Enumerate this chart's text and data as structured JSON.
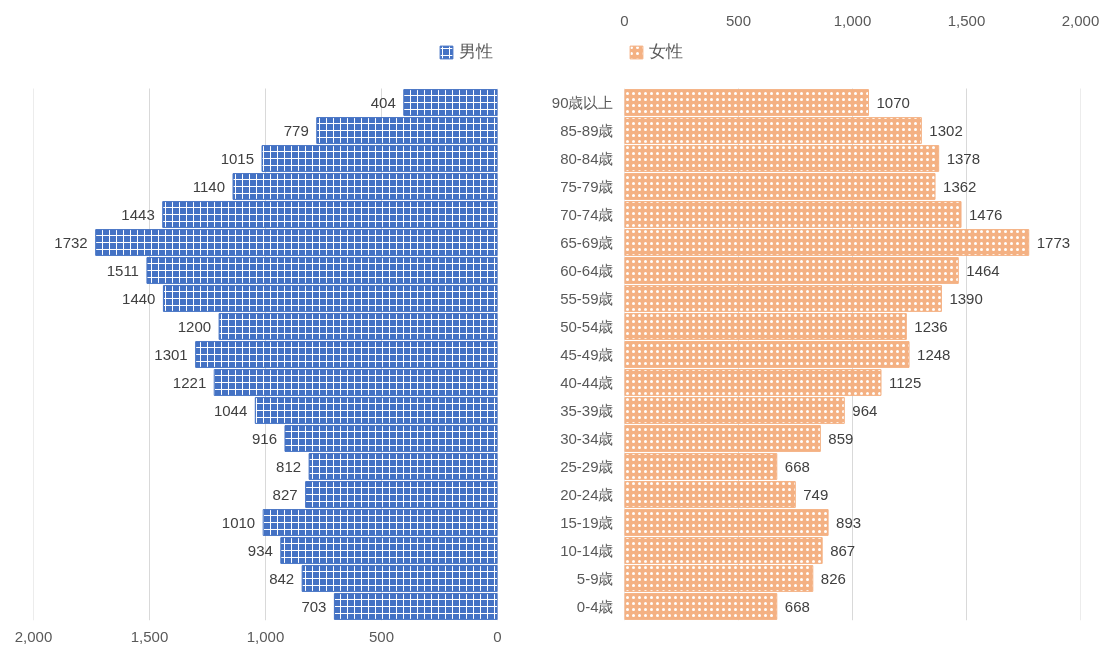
{
  "chart_data": [
    {
      "type": "bar",
      "orientation": "horizontal",
      "categories": [
        null,
        null,
        null,
        null,
        null,
        null,
        null,
        null,
        null,
        null,
        null,
        null,
        null,
        null,
        null,
        null,
        null,
        null,
        null
      ],
      "series": [
        {
          "name": "男性",
          "color": "#4472c4",
          "values": [
            404,
            779,
            1015,
            1140,
            1443,
            1732,
            1511,
            1440,
            1200,
            1301,
            1221,
            1044,
            916,
            812,
            827,
            1010,
            934,
            842,
            703
          ]
        }
      ],
      "xlim": [
        2000,
        0
      ],
      "xticks": [
        {
          "value": 2000,
          "label": "2,000"
        },
        {
          "value": 1500,
          "label": "1,500"
        },
        {
          "value": 1000,
          "label": "1,000"
        },
        500,
        0
      ],
      "tick_labels": "x",
      "grid": "x",
      "legend": "top",
      "data_labels": true
    },
    {
      "type": "bar",
      "orientation": "horizontal",
      "categories": [
        "90歳以上",
        "85-89歳",
        "80-84歳",
        "75-79歳",
        "70-74歳",
        "65-69歳",
        "60-64歳",
        "55-59歳",
        "50-54歳",
        "45-49歳",
        "40-44歳",
        "35-39歳",
        "30-34歳",
        "25-29歳",
        "20-24歳",
        "15-19歳",
        "10-14歳",
        "5-9歳",
        "0-4歳"
      ],
      "series": [
        {
          "name": "女性",
          "color": "#f4b183",
          "values": [
            1070,
            1302,
            1378,
            1362,
            1476,
            1773,
            1464,
            1390,
            1236,
            1248,
            1125,
            964,
            859,
            668,
            749,
            893,
            867,
            826,
            668
          ]
        }
      ],
      "x2lim": [
        0,
        2000
      ],
      "x2ticks": [
        0,
        500,
        {
          "value": 1000,
          "label": "1,000"
        },
        {
          "value": 1500,
          "label": "1,500"
        },
        {
          "value": 2000,
          "label": "2,000"
        }
      ],
      "grid": "x",
      "legend": "top",
      "data_labels": true
    }
  ]
}
